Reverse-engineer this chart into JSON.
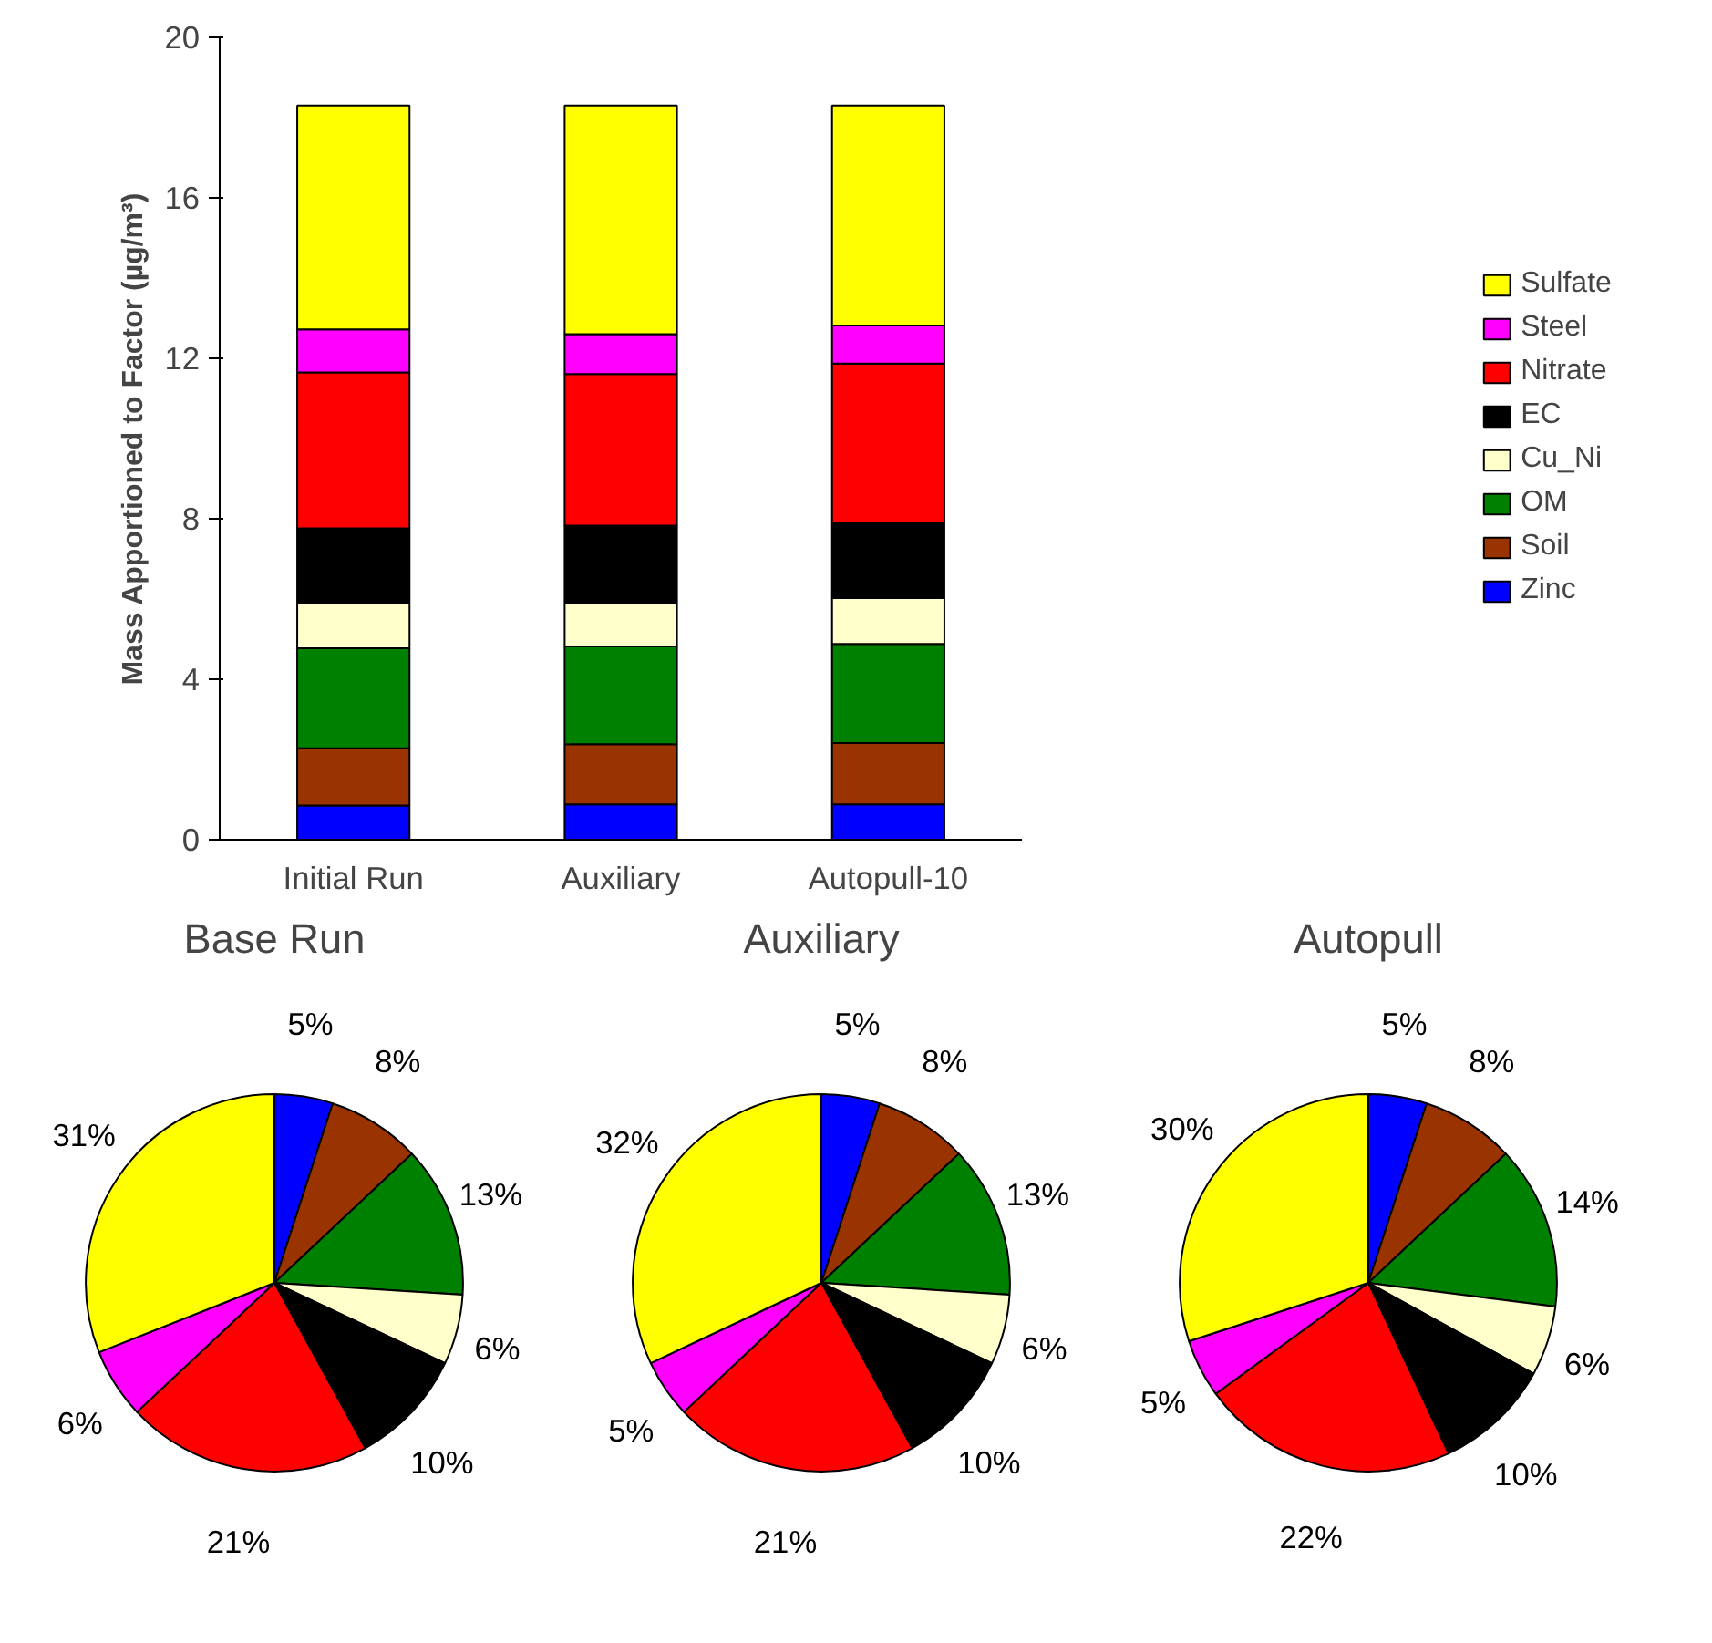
{
  "chart_data": [
    {
      "type": "bar",
      "stacked": true,
      "ylabel": "Mass Apportioned to Factor (µg/m³)",
      "categories": [
        "Initial Run",
        "Auxiliary",
        "Autopull-10"
      ],
      "ylim": [
        0,
        20
      ],
      "yticks": [
        0,
        4,
        8,
        12,
        16,
        20
      ],
      "grid": false,
      "legend": "right",
      "series": [
        {
          "name": "Zinc",
          "color": "#0000ff",
          "values": [
            0.85,
            0.88,
            0.88
          ]
        },
        {
          "name": "Soil",
          "color": "#993300",
          "values": [
            1.43,
            1.5,
            1.53
          ]
        },
        {
          "name": "OM",
          "color": "#008000",
          "values": [
            2.49,
            2.44,
            2.47
          ]
        },
        {
          "name": "Cu_Ni",
          "color": "#ffffcc",
          "values": [
            1.12,
            1.07,
            1.14
          ]
        },
        {
          "name": "EC",
          "color": "#000000",
          "values": [
            1.87,
            1.94,
            1.89
          ]
        },
        {
          "name": "Nitrate",
          "color": "#ff0000",
          "values": [
            3.89,
            3.78,
            3.96
          ]
        },
        {
          "name": "Steel",
          "color": "#ff00ff",
          "values": [
            1.07,
            0.99,
            0.95
          ]
        },
        {
          "name": "Sulfate",
          "color": "#ffff00",
          "values": [
            5.58,
            5.7,
            5.48
          ]
        }
      ]
    },
    {
      "type": "pie",
      "title": "Base Run",
      "values": [
        5,
        8,
        13,
        6,
        10,
        21,
        6,
        31
      ],
      "value_labels": [
        "5%",
        "8%",
        "13%",
        "6%",
        "10%",
        "21%",
        "6%",
        "31%"
      ],
      "colors": [
        "#0000ff",
        "#993300",
        "#008000",
        "#ffffcc",
        "#000000",
        "#ff0000",
        "#ff00ff",
        "#ffff00"
      ]
    },
    {
      "type": "pie",
      "title": "Auxiliary",
      "values": [
        5,
        8,
        13,
        6,
        10,
        21,
        5,
        32
      ],
      "value_labels": [
        "5%",
        "8%",
        "13%",
        "6%",
        "10%",
        "21%",
        "5%",
        "32%"
      ],
      "colors": [
        "#0000ff",
        "#993300",
        "#008000",
        "#ffffcc",
        "#000000",
        "#ff0000",
        "#ff00ff",
        "#ffff00"
      ]
    },
    {
      "type": "pie",
      "title": "Autopull",
      "values": [
        5,
        8,
        14,
        6,
        10,
        22,
        5,
        30
      ],
      "value_labels": [
        "5%",
        "8%",
        "14%",
        "6%",
        "10%",
        "22%",
        "5%",
        "30%"
      ],
      "colors": [
        "#0000ff",
        "#993300",
        "#008000",
        "#ffffcc",
        "#000000",
        "#ff0000",
        "#ff00ff",
        "#ffff00"
      ]
    }
  ]
}
